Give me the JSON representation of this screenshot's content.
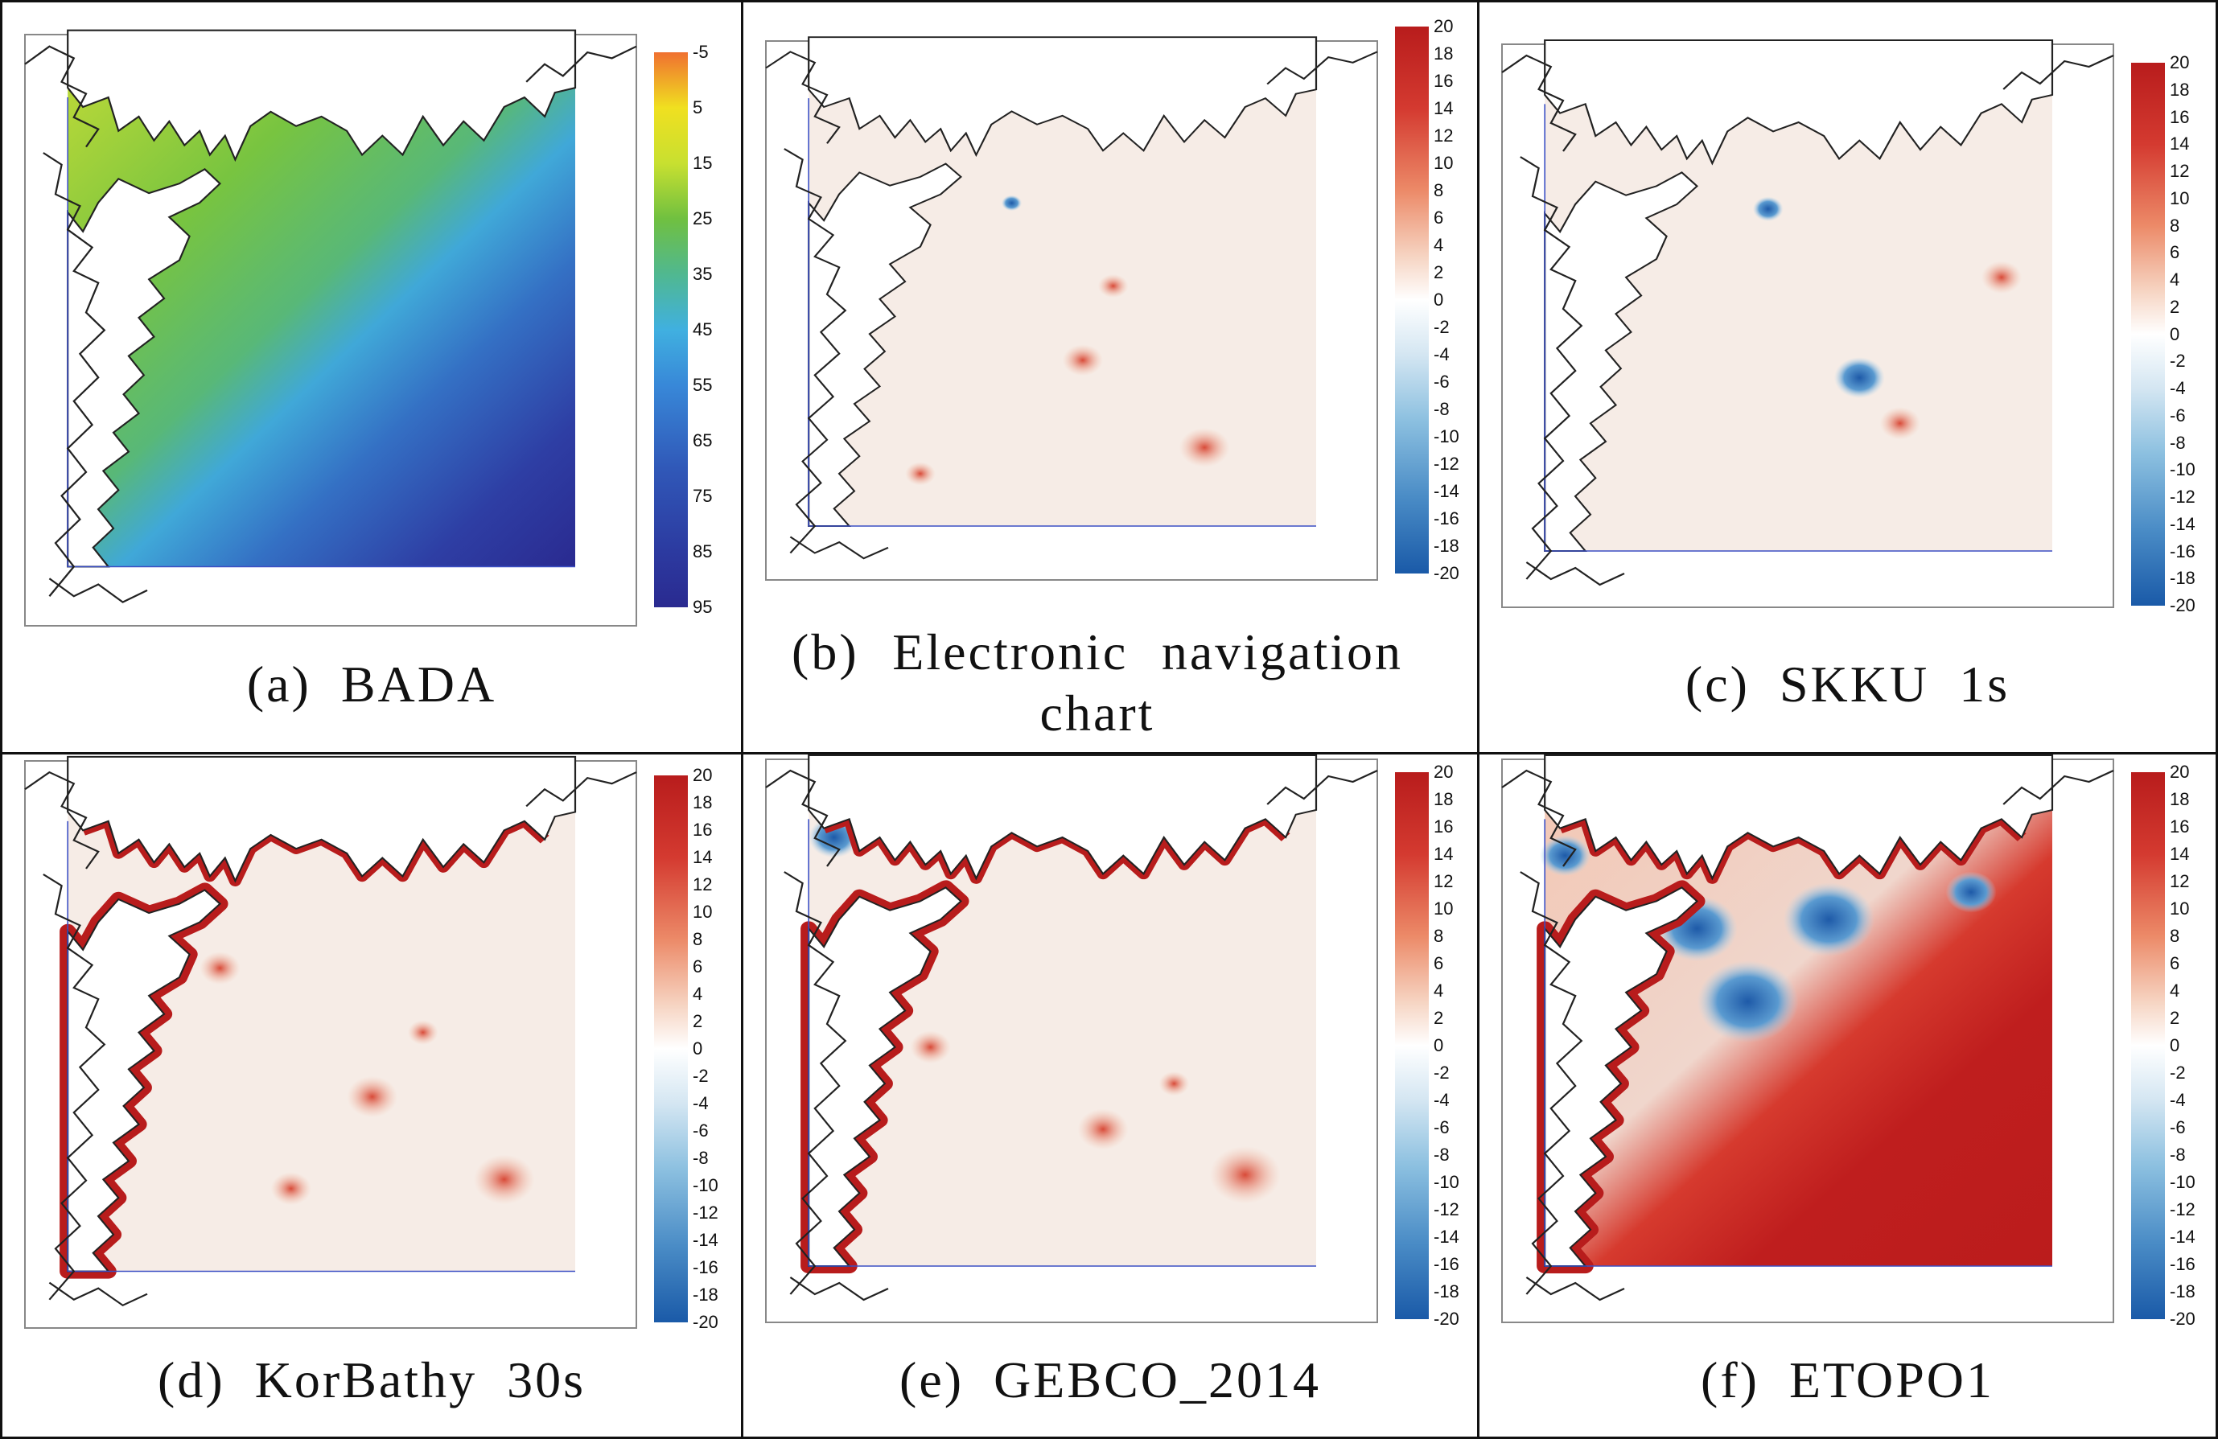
{
  "figure": {
    "panels": [
      {
        "id": "a",
        "caption": "(a)  BADA",
        "scale": "depth",
        "ticks": [
          "-5",
          "5",
          "15",
          "25",
          "35",
          "45",
          "55",
          "65",
          "75",
          "85",
          "95"
        ]
      },
      {
        "id": "b",
        "caption": "(b)  Electronic  navigation  chart",
        "scale": "diff",
        "ticks": [
          "20",
          "18",
          "16",
          "14",
          "12",
          "10",
          "8",
          "6",
          "4",
          "2",
          "0",
          "-2",
          "-4",
          "-6",
          "-8",
          "-10",
          "-12",
          "-14",
          "-16",
          "-18",
          "-20"
        ]
      },
      {
        "id": "c",
        "caption": "(c)  SKKU  1s",
        "scale": "diff",
        "ticks": [
          "20",
          "18",
          "16",
          "14",
          "12",
          "10",
          "8",
          "6",
          "4",
          "2",
          "0",
          "-2",
          "-4",
          "-6",
          "-8",
          "-10",
          "-12",
          "-14",
          "-16",
          "-18",
          "-20"
        ]
      },
      {
        "id": "d",
        "caption": "(d)  KorBathy  30s",
        "scale": "diff",
        "ticks": [
          "20",
          "18",
          "16",
          "14",
          "12",
          "10",
          "8",
          "6",
          "4",
          "2",
          "0",
          "-2",
          "-4",
          "-6",
          "-8",
          "-10",
          "-12",
          "-14",
          "-16",
          "-18",
          "-20"
        ]
      },
      {
        "id": "e",
        "caption": "(e)  GEBCO_2014",
        "scale": "diff",
        "ticks": [
          "20",
          "18",
          "16",
          "14",
          "12",
          "10",
          "8",
          "6",
          "4",
          "2",
          "0",
          "-2",
          "-4",
          "-6",
          "-8",
          "-10",
          "-12",
          "-14",
          "-16",
          "-18",
          "-20"
        ]
      },
      {
        "id": "f",
        "caption": "(f)  ETOPO1",
        "scale": "diff",
        "ticks": [
          "20",
          "18",
          "16",
          "14",
          "12",
          "10",
          "8",
          "6",
          "4",
          "2",
          "0",
          "-2",
          "-4",
          "-6",
          "-8",
          "-10",
          "-12",
          "-14",
          "-16",
          "-18",
          "-20"
        ]
      }
    ],
    "colors": {
      "depth_ramp": [
        "#f07030",
        "#f0e020",
        "#d8e830",
        "#90d040",
        "#60b840",
        "#50b0c0",
        "#40a8e0",
        "#3c70c8",
        "#3048a8",
        "#2a2a90"
      ],
      "diff_ramp": [
        "#1a5aa8",
        "#5aa0d0",
        "#a8d0e8",
        "#ffffff",
        "#f4c8b0",
        "#e88060",
        "#b81c1c"
      ],
      "coast": "#222222",
      "domain_border": "#3b4fc4",
      "land": "#ffffff"
    }
  }
}
